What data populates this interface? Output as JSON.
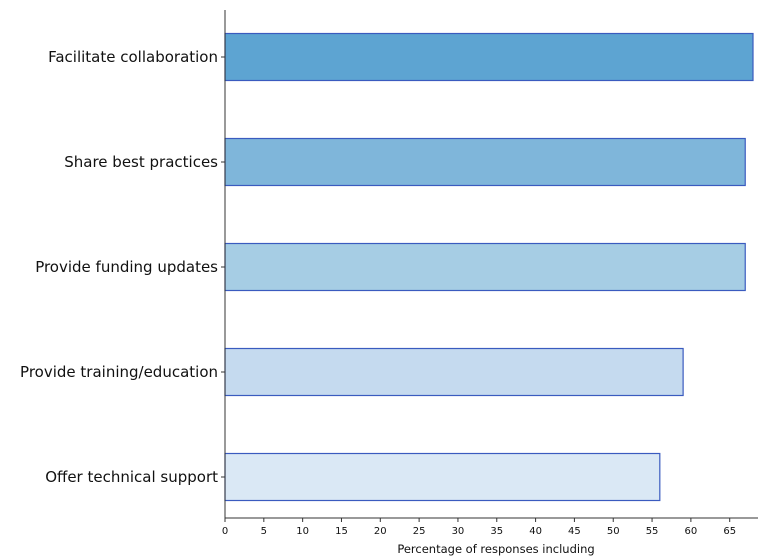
{
  "chart_data": {
    "type": "bar",
    "orientation": "horizontal",
    "categories": [
      "Facilitate collaboration",
      "Share best practices",
      "Provide funding updates",
      "Provide training/education",
      "Offer technical support"
    ],
    "values": [
      68,
      67,
      67,
      59,
      56
    ],
    "colors": [
      "#5da4d2",
      "#7fb6da",
      "#a6cde4",
      "#c5daef",
      "#dae8f5"
    ],
    "edge_color": "#3a5bbf",
    "xlabel": "Percentage of responses including",
    "ylabel": "",
    "xlim": [
      0,
      68
    ],
    "xticks": [
      0,
      5,
      10,
      15,
      20,
      25,
      30,
      35,
      40,
      45,
      50,
      55,
      60,
      65
    ],
    "grid": false
  }
}
